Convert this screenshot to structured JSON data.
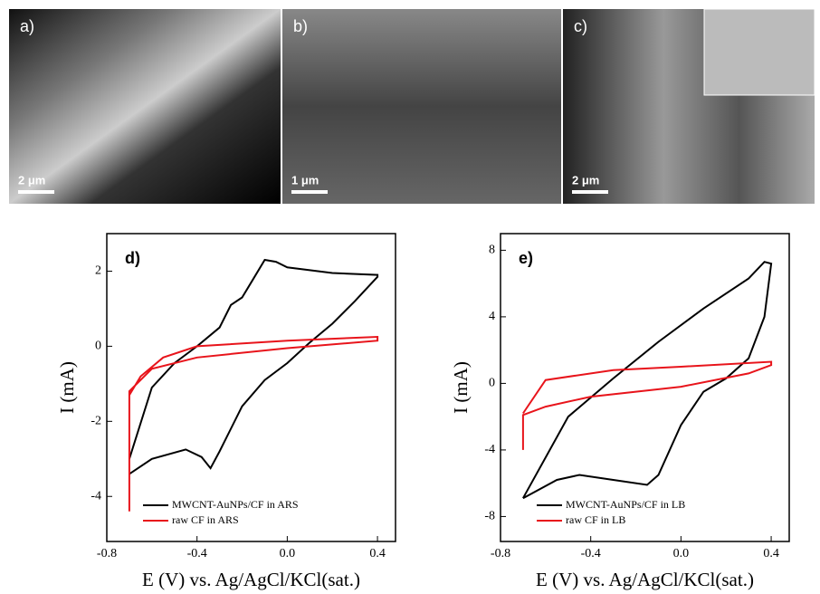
{
  "images": [
    {
      "label": "a)",
      "scale": "2 μm"
    },
    {
      "label": "b)",
      "scale": "1 μm"
    },
    {
      "label": "c)",
      "scale": "2 μm"
    }
  ],
  "chart_data": [
    {
      "type": "line",
      "annotation": "d)",
      "xlabel": "E (V) vs. Ag/AgCl/KCl(sat.)",
      "ylabel": "I (mA)",
      "xlim": [
        -0.8,
        0.48
      ],
      "xticks": [
        -0.8,
        -0.4,
        {
          "value": 0,
          "label": "0.0"
        },
        0.4
      ],
      "ylim": [
        -5.2,
        3
      ],
      "yticks": [
        2,
        0,
        -2,
        -4
      ],
      "series": [
        {
          "name": "MWCNT-AuNPs/CF in ARS",
          "color": "#000000",
          "x": [
            -0.7,
            -0.6,
            -0.45,
            -0.38,
            -0.34,
            -0.3,
            -0.2,
            -0.1,
            0.0,
            0.1,
            0.2,
            0.3,
            0.4,
            0.4,
            0.2,
            0.0,
            -0.05,
            -0.1,
            -0.15,
            -0.2,
            -0.25,
            -0.3,
            -0.4,
            -0.5,
            -0.6,
            -0.7
          ],
          "values": [
            -3.4,
            -3.0,
            -2.75,
            -2.95,
            -3.25,
            -2.8,
            -1.6,
            -0.9,
            -0.45,
            0.1,
            0.6,
            1.2,
            1.85,
            1.9,
            1.95,
            2.1,
            2.25,
            2.3,
            1.8,
            1.3,
            1.1,
            0.5,
            0.0,
            -0.45,
            -1.1,
            -3.0
          ]
        },
        {
          "name": "raw CF in ARS",
          "color": "#e8141b",
          "x": [
            -0.7,
            -0.7,
            -0.6,
            -0.4,
            0.0,
            0.4,
            0.4,
            0.0,
            -0.4,
            -0.55,
            -0.65,
            -0.7
          ],
          "values": [
            -4.4,
            -1.2,
            -0.6,
            -0.3,
            -0.05,
            0.15,
            0.25,
            0.15,
            0.0,
            -0.3,
            -0.8,
            -1.3
          ]
        }
      ]
    },
    {
      "type": "line",
      "annotation": "e)",
      "xlabel": "E (V) vs. Ag/AgCl/KCl(sat.)",
      "ylabel": "I (mA)",
      "xlim": [
        -0.8,
        0.48
      ],
      "xticks": [
        -0.8,
        -0.4,
        {
          "value": 0,
          "label": "0.0"
        },
        0.4
      ],
      "ylim": [
        -9.5,
        9
      ],
      "yticks": [
        8,
        4,
        0,
        -4,
        -8
      ],
      "series": [
        {
          "name": "MWCNT-AuNPs/CF in LB",
          "color": "#000000",
          "x": [
            -0.7,
            -0.55,
            -0.45,
            -0.3,
            -0.15,
            -0.1,
            0.0,
            0.1,
            0.2,
            0.3,
            0.37,
            0.4,
            0.37,
            0.3,
            0.1,
            -0.1,
            -0.3,
            -0.5,
            -0.7
          ],
          "values": [
            -6.9,
            -5.8,
            -5.5,
            -5.8,
            -6.1,
            -5.5,
            -2.5,
            -0.5,
            0.3,
            1.5,
            4,
            7.2,
            7.3,
            6.3,
            4.5,
            2.5,
            0.3,
            -2.0,
            -6.9
          ]
        },
        {
          "name": "raw CF in LB",
          "color": "#e8141b",
          "x": [
            -0.7,
            -0.7,
            -0.6,
            -0.4,
            0.0,
            0.3,
            0.4,
            0.4,
            0.0,
            -0.3,
            -0.6,
            -0.7
          ],
          "values": [
            -4,
            -1.9,
            -1.4,
            -0.8,
            -0.2,
            0.6,
            1.1,
            1.3,
            1.0,
            0.8,
            0.2,
            -1.8
          ]
        }
      ]
    }
  ]
}
